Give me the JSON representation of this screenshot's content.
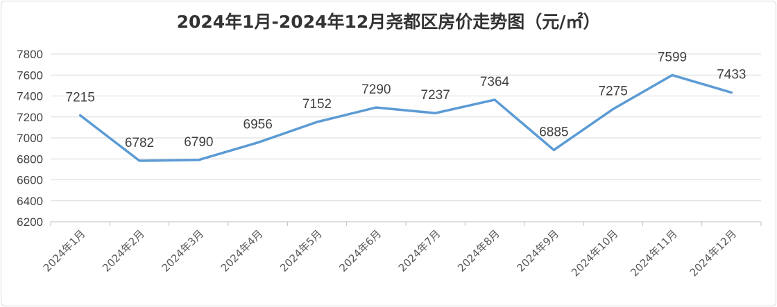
{
  "chart_data": {
    "type": "line",
    "title": "2024年1月-2024年12月尧都区房价走势图（元/㎡）",
    "categories": [
      "2024年1月",
      "2024年2月",
      "2024年3月",
      "2024年4月",
      "2024年5月",
      "2024年6月",
      "2024年7月",
      "2024年8月",
      "2024年9月",
      "2024年10月",
      "2024年11月",
      "2024年12月"
    ],
    "series": [
      {
        "values": [
          7215,
          6782,
          6790,
          6956,
          7152,
          7290,
          7237,
          7364,
          6885,
          7275,
          7599,
          7433
        ]
      }
    ],
    "yticks": [
      "6200",
      "6400",
      "6600",
      "6800",
      "7000",
      "7200",
      "7400",
      "7600",
      "7800"
    ],
    "ylim": [
      6200,
      7800
    ],
    "grid": true,
    "legend": "none",
    "xlabel": "",
    "ylabel": "",
    "line_color": "#5b9bd5",
    "data_labels": true
  }
}
